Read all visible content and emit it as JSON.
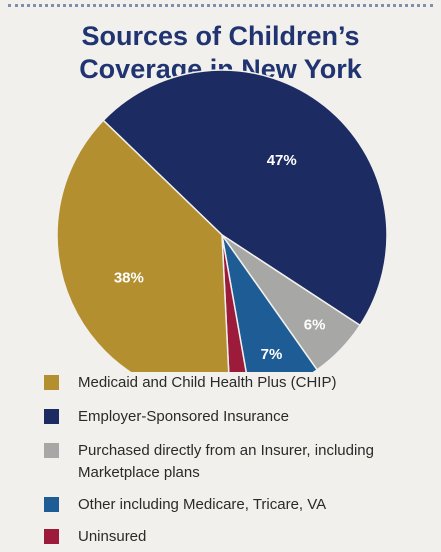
{
  "title_line1": "Sources of Children’s",
  "title_line2": "Coverage in New York",
  "chart_data": {
    "type": "pie",
    "title": "Sources of Children’s Coverage in New York",
    "slices": [
      {
        "name": "Employer-Sponsored Insurance",
        "value": 47,
        "label": "47%",
        "color": "#1c2b62"
      },
      {
        "name": "Purchased directly from an Insurer, including Marketplace plans",
        "value": 6,
        "label": "6%",
        "color": "#a7a7a5"
      },
      {
        "name": "Other including Medicare, Tricare, VA",
        "value": 7,
        "label": "7%",
        "color": "#1e5c96"
      },
      {
        "name": "Uninsured",
        "value": 2,
        "label": "2%",
        "color": "#9c1a3a"
      },
      {
        "name": "Medicaid and Child Health Plus (CHIP)",
        "value": 38,
        "label": "38%",
        "color": "#b38f2f"
      }
    ],
    "legend_position": "bottom",
    "legend": [
      {
        "label": "Medicaid and Child Health Plus (CHIP)",
        "color": "#b38f2f"
      },
      {
        "label": "Employer-Sponsored Insurance",
        "color": "#1c2b62"
      },
      {
        "label": "Purchased directly from an Insurer, including Marketplace plans",
        "color": "#a7a7a5"
      },
      {
        "label": "Other including Medicare, Tricare, VA",
        "color": "#1e5c96"
      },
      {
        "label": "Uninsured",
        "color": "#9c1a3a"
      }
    ]
  }
}
